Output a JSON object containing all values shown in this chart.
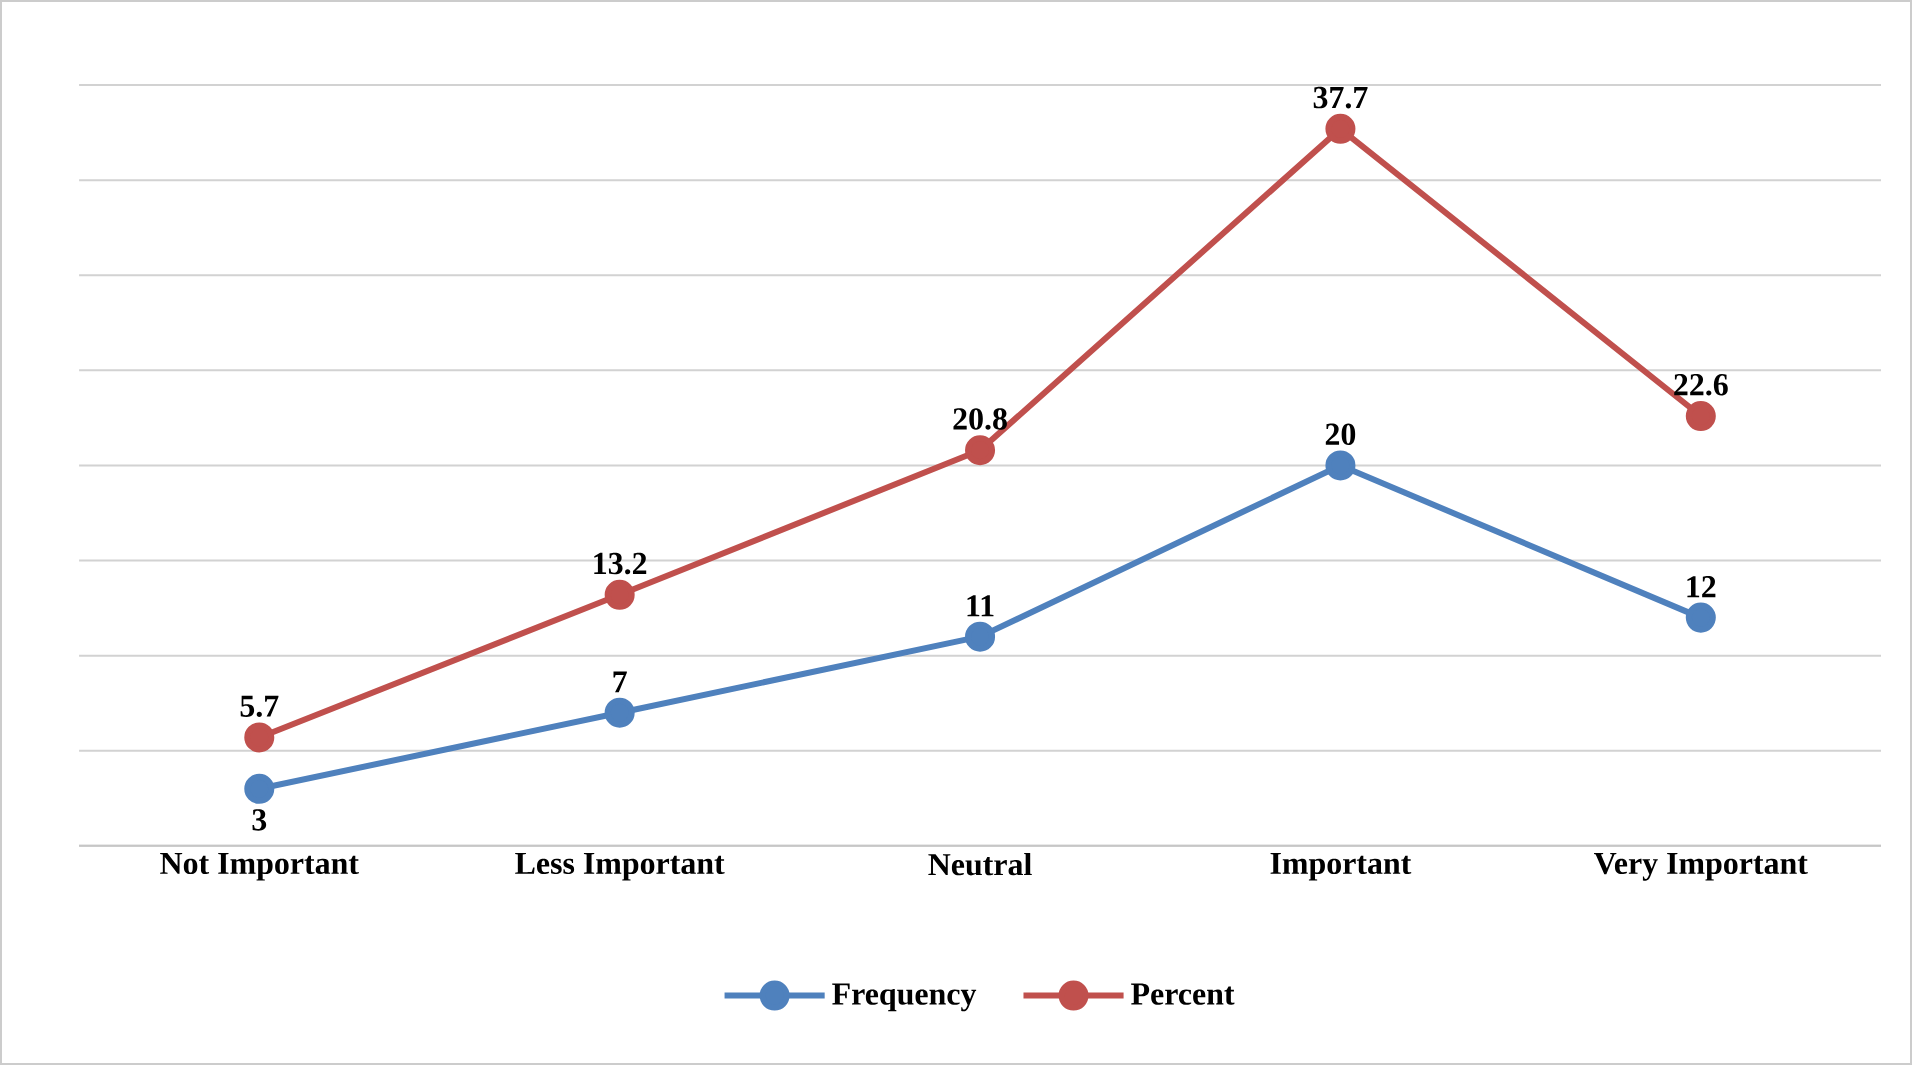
{
  "chart_data": {
    "type": "line",
    "categories": [
      "Not Important",
      "Less Important",
      "Neutral",
      "Important",
      "Very Important"
    ],
    "series": [
      {
        "name": "Frequency",
        "color": "#4f81bd",
        "values": [
          3,
          7,
          11,
          20,
          12
        ]
      },
      {
        "name": "Percent",
        "color": "#c0504d",
        "values": [
          5.7,
          13.2,
          20.8,
          37.7,
          22.6
        ]
      }
    ],
    "ylim": [
      0,
      40
    ],
    "yticks": [
      {
        "value": 0,
        "label": null
      },
      {
        "value": 5,
        "label": null
      },
      {
        "value": 10,
        "label": null
      },
      {
        "value": 15,
        "label": null
      },
      {
        "value": 20,
        "label": null
      },
      {
        "value": 25,
        "label": null
      },
      {
        "value": 30,
        "label": null
      },
      {
        "value": 35,
        "label": null
      },
      {
        "value": 40,
        "label": null
      }
    ],
    "tick_labels": "x",
    "grid": "y",
    "legend": "bottom",
    "marker": "circle",
    "line_style": "solid",
    "data_labels": true
  }
}
